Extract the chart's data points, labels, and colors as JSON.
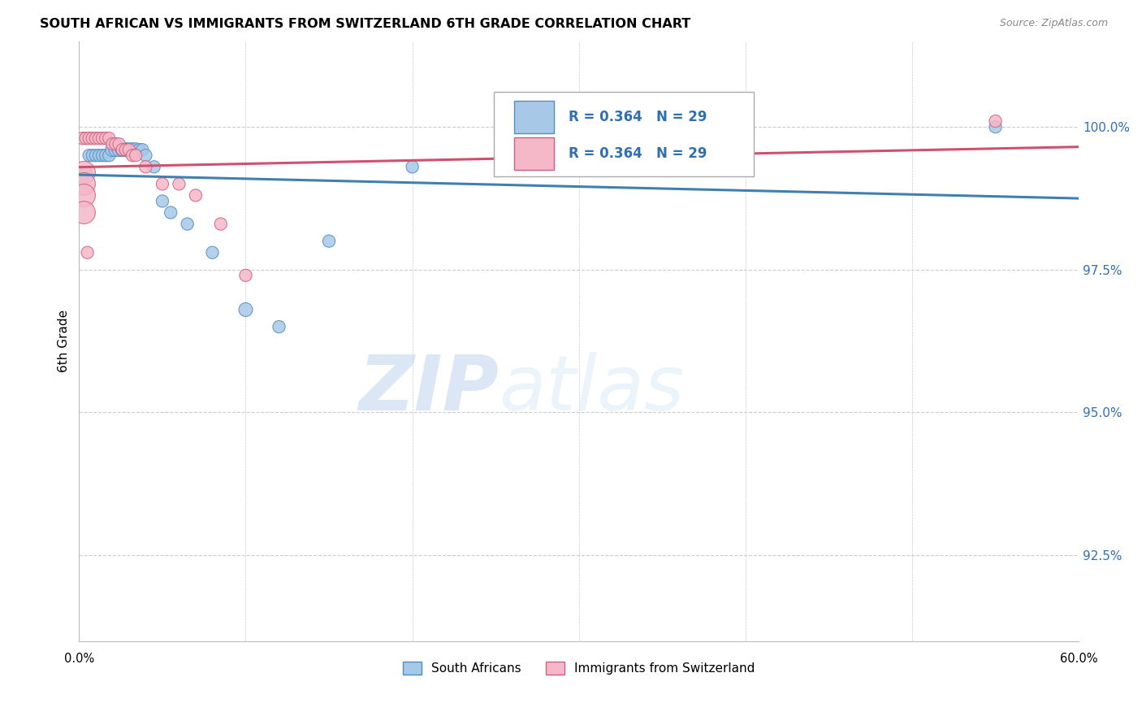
{
  "title": "SOUTH AFRICAN VS IMMIGRANTS FROM SWITZERLAND 6TH GRADE CORRELATION CHART",
  "source": "Source: ZipAtlas.com",
  "ylabel": "6th Grade",
  "yticks": [
    92.5,
    95.0,
    97.5,
    100.0
  ],
  "ytick_labels": [
    "92.5%",
    "95.0%",
    "97.5%",
    "100.0%"
  ],
  "xlim": [
    0.0,
    60.0
  ],
  "ylim": [
    91.0,
    101.5
  ],
  "legend_labels": [
    "South Africans",
    "Immigrants from Switzerland"
  ],
  "R_blue": 0.364,
  "N_blue": 29,
  "R_pink": 0.364,
  "N_pink": 29,
  "blue_color": "#a8c8e8",
  "pink_color": "#f4b8c8",
  "blue_edge_color": "#5090c0",
  "pink_edge_color": "#d06080",
  "blue_line_color": "#4080b0",
  "pink_line_color": "#d05070",
  "watermark_zip": "ZIP",
  "watermark_atlas": "atlas",
  "blue_scatter_x": [
    0.4,
    0.6,
    0.8,
    1.0,
    1.2,
    1.4,
    1.6,
    1.8,
    2.0,
    2.2,
    2.4,
    2.6,
    2.8,
    3.0,
    3.2,
    3.4,
    3.6,
    3.8,
    4.0,
    4.5,
    5.0,
    5.5,
    6.5,
    8.0,
    10.0,
    12.0,
    15.0,
    20.0,
    55.0
  ],
  "blue_scatter_y": [
    99.2,
    99.5,
    99.5,
    99.5,
    99.5,
    99.5,
    99.5,
    99.5,
    99.6,
    99.6,
    99.6,
    99.6,
    99.6,
    99.6,
    99.6,
    99.6,
    99.6,
    99.6,
    99.5,
    99.3,
    98.7,
    98.5,
    98.3,
    97.8,
    96.8,
    96.5,
    98.0,
    99.3,
    100.0
  ],
  "blue_scatter_sizes": [
    120,
    120,
    120,
    120,
    120,
    120,
    120,
    120,
    150,
    150,
    150,
    150,
    150,
    150,
    150,
    150,
    120,
    120,
    120,
    120,
    120,
    120,
    120,
    120,
    150,
    120,
    120,
    120,
    120
  ],
  "pink_scatter_x": [
    0.2,
    0.4,
    0.6,
    0.8,
    1.0,
    1.2,
    1.4,
    1.6,
    1.8,
    2.0,
    2.2,
    2.4,
    2.6,
    2.8,
    3.0,
    3.2,
    3.4,
    4.0,
    5.0,
    6.0,
    7.0,
    8.5,
    10.0,
    0.3,
    0.3,
    0.3,
    0.3,
    0.5,
    55.0
  ],
  "pink_scatter_y": [
    99.8,
    99.8,
    99.8,
    99.8,
    99.8,
    99.8,
    99.8,
    99.8,
    99.8,
    99.7,
    99.7,
    99.7,
    99.6,
    99.6,
    99.6,
    99.5,
    99.5,
    99.3,
    99.0,
    99.0,
    98.8,
    98.3,
    97.4,
    99.2,
    99.0,
    98.8,
    98.5,
    97.8,
    100.1
  ],
  "pink_scatter_sizes": [
    120,
    120,
    120,
    120,
    120,
    120,
    120,
    120,
    120,
    120,
    120,
    120,
    120,
    120,
    120,
    120,
    120,
    120,
    120,
    120,
    120,
    120,
    120,
    400,
    400,
    400,
    400,
    120,
    120
  ]
}
